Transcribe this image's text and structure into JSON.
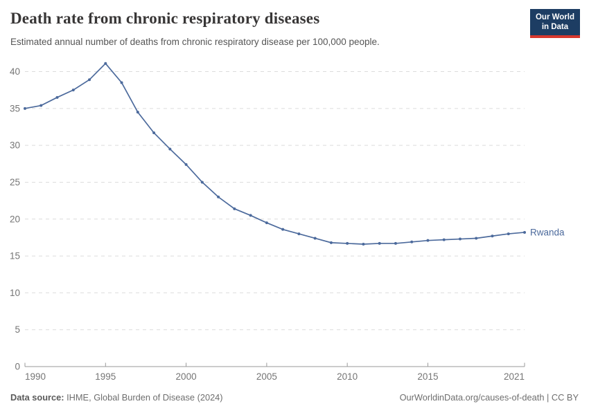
{
  "header": {
    "title": "Death rate from chronic respiratory diseases",
    "subtitle": "Estimated annual number of deaths from chronic respiratory disease per 100,000 people.",
    "logo": {
      "line1": "Our World",
      "line2": "in Data",
      "bg_color": "#1d3d63",
      "bar_color": "#d7382e"
    }
  },
  "chart_data": {
    "type": "line",
    "title": "Death rate from chronic respiratory diseases",
    "unit": "deaths per 100,000 people",
    "x": [
      1990,
      1991,
      1992,
      1993,
      1994,
      1995,
      1996,
      1997,
      1998,
      1999,
      2000,
      2001,
      2002,
      2003,
      2004,
      2005,
      2006,
      2007,
      2008,
      2009,
      2010,
      2011,
      2012,
      2013,
      2014,
      2015,
      2016,
      2017,
      2018,
      2019,
      2020,
      2021
    ],
    "series": [
      {
        "name": "Rwanda",
        "color": "#4c6a9c",
        "values": [
          35.0,
          35.4,
          36.5,
          37.5,
          38.9,
          41.1,
          38.5,
          34.5,
          31.7,
          29.5,
          27.4,
          25.0,
          23.0,
          21.4,
          20.5,
          19.5,
          18.6,
          18.0,
          17.4,
          16.8,
          16.7,
          16.6,
          16.7,
          16.7,
          16.9,
          17.1,
          17.2,
          17.3,
          17.4,
          17.7,
          18.0,
          18.2
        ]
      }
    ],
    "xticks": [
      1990,
      1995,
      2000,
      2005,
      2010,
      2015,
      2021
    ],
    "yticks": [
      0,
      5,
      10,
      15,
      20,
      25,
      30,
      35,
      40
    ],
    "xlim": [
      1990,
      2021
    ],
    "ylim": [
      0,
      42
    ],
    "grid": "horizontal-dashed",
    "legend_position": "line-end-label",
    "gridline_color": "#dcdcdc",
    "axis_color": "#9a9a9a",
    "tick_label_color": "#757575"
  },
  "footer": {
    "source_label": "Data source:",
    "source_text": " IHME, Global Burden of Disease (2024)",
    "link_text": "OurWorldinData.org/causes-of-death | CC BY"
  }
}
